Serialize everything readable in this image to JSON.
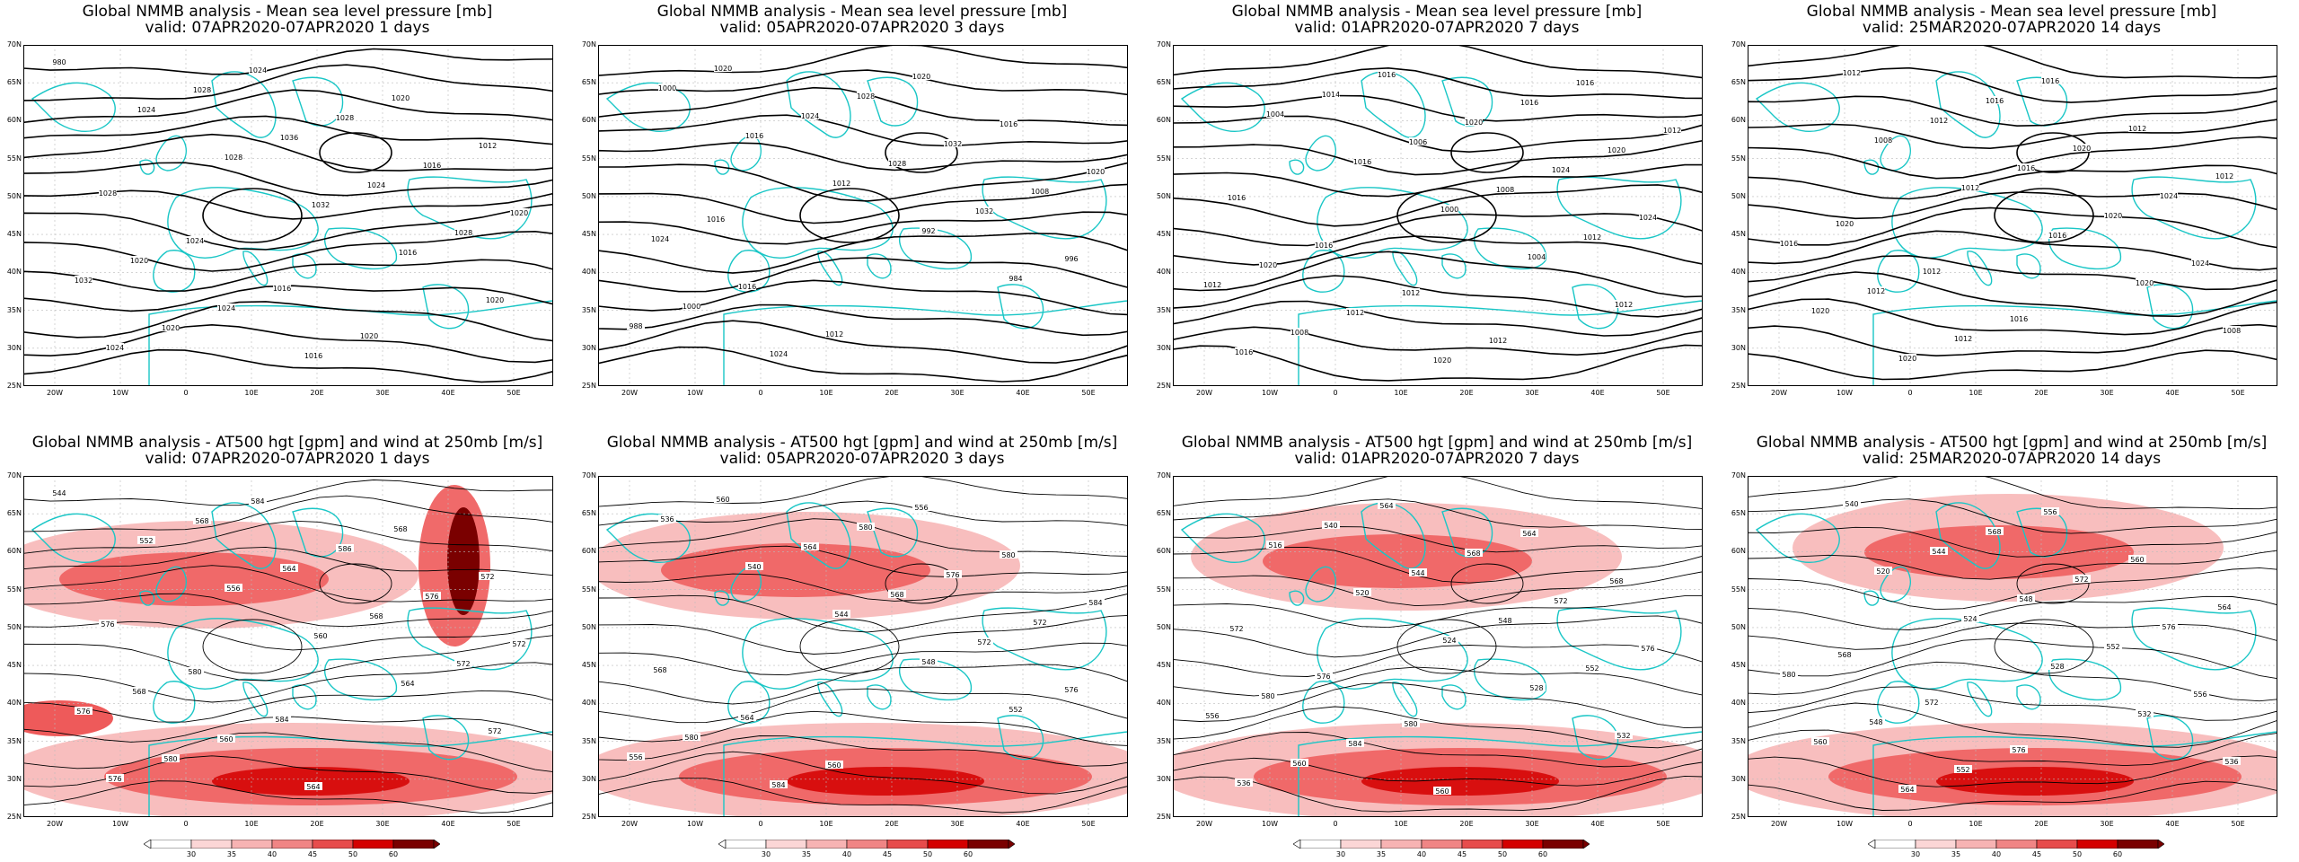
{
  "panels": [
    {
      "title": "Global NMMB analysis - Mean sea level pressure [mb]",
      "valid": "valid: 07APR2020-07APR2020   1 days",
      "contour_labels": [
        "980",
        "1024",
        "1028",
        "1032",
        "1016",
        "1020",
        "1024",
        "1028",
        "1036",
        "1024",
        "1028",
        "1032",
        "1020",
        "1024",
        "1028",
        "1016",
        "1020",
        "1020",
        "1024",
        "1016",
        "1020",
        "1012",
        "1028",
        "1024",
        "1016",
        "1020"
      ]
    },
    {
      "title": "Global NMMB analysis - Mean sea level pressure [mb]",
      "valid": "valid: 05APR2020-07APR2020   3 days",
      "contour_labels": [
        "1000",
        "1016",
        "1012",
        "992",
        "984",
        "988",
        "1020",
        "1024",
        "1028",
        "1032",
        "996",
        "1000",
        "1024",
        "1028",
        "1032",
        "1008",
        "1024",
        "1016",
        "1012",
        "1020",
        "1016",
        "1020",
        "1016"
      ]
    },
    {
      "title": "Global NMMB analysis - Mean sea level pressure [mb]",
      "valid": "valid: 01APR2020-07APR2020   7 days",
      "contour_labels": [
        "1004",
        "1016",
        "1000",
        "1004",
        "1012",
        "1016",
        "1014",
        "1006",
        "1008",
        "1012",
        "1012",
        "1008",
        "1016",
        "1020",
        "1024",
        "1024",
        "1020",
        "1012",
        "1020",
        "1016",
        "1020",
        "1016",
        "1016",
        "1012",
        "1012",
        "1016",
        "1012"
      ]
    },
    {
      "title": "Global NMMB analysis - Mean sea level pressure [mb]",
      "valid": "valid: 25MAR2020-07APR2020   14 days",
      "contour_labels": [
        "1008",
        "1012",
        "1016",
        "1020",
        "1008",
        "1012",
        "1012",
        "1016",
        "1020",
        "1024",
        "1020",
        "1020",
        "1016",
        "1020",
        "1024",
        "1016",
        "1012",
        "1012",
        "1016",
        "1012",
        "1012",
        "1020",
        "1012",
        "1016"
      ]
    },
    {
      "title": "Global NMMB analysis - AT500 hgt [gpm] and wind at 250mb [m/s]",
      "valid": "valid: 07APR2020-07APR2020   1 days",
      "contour_labels": [
        "544",
        "552",
        "556",
        "560",
        "564",
        "572",
        "576",
        "568",
        "564",
        "568",
        "572",
        "576",
        "580",
        "584",
        "586",
        "576",
        "572",
        "568",
        "560",
        "564",
        "568",
        "572",
        "576",
        "580",
        "584"
      ]
    },
    {
      "title": "Global NMMB analysis - AT500 hgt [gpm] and wind at 250mb [m/s]",
      "valid": "valid: 05APR2020-07APR2020   3 days",
      "contour_labels": [
        "536",
        "540",
        "544",
        "548",
        "552",
        "556",
        "560",
        "564",
        "568",
        "572",
        "576",
        "580",
        "584",
        "580",
        "576",
        "572",
        "568",
        "564",
        "560",
        "556",
        "580",
        "584"
      ]
    },
    {
      "title": "Global NMMB analysis - AT500 hgt [gpm] and wind at 250mb [m/s]",
      "valid": "valid: 01APR2020-07APR2020   7 days",
      "contour_labels": [
        "516",
        "520",
        "524",
        "528",
        "532",
        "536",
        "540",
        "544",
        "548",
        "552",
        "556",
        "560",
        "564",
        "568",
        "572",
        "576",
        "580",
        "584",
        "560",
        "564",
        "568",
        "572",
        "576",
        "580"
      ]
    },
    {
      "title": "Global NMMB analysis - AT500 hgt [gpm] and wind at 250mb [m/s]",
      "valid": "valid: 25MAR2020-07APR2020   14 days",
      "contour_labels": [
        "520",
        "524",
        "528",
        "532",
        "536",
        "540",
        "544",
        "548",
        "552",
        "556",
        "560",
        "564",
        "568",
        "572",
        "576",
        "580",
        "548",
        "552",
        "556",
        "560",
        "564",
        "568",
        "572",
        "576"
      ]
    }
  ],
  "lat_labels": [
    "70N",
    "65N",
    "60N",
    "55N",
    "50N",
    "45N",
    "40N",
    "35N",
    "30N",
    "25N"
  ],
  "lon_labels": [
    "20W",
    "10W",
    "0",
    "10E",
    "20E",
    "30E",
    "40E",
    "50E"
  ],
  "colorbar_labels": [
    "30",
    "35",
    "40",
    "45",
    "50",
    "60"
  ],
  "colors": {
    "coast": "#19c6c6",
    "contour": "#000000",
    "wind_light": "#f7b3b3",
    "wind_mid": "#ee5a5a",
    "wind_strong": "#d40000",
    "wind_max": "#7a0000"
  }
}
